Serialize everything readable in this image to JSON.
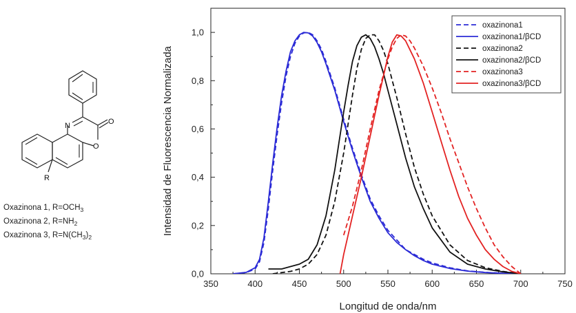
{
  "structure": {
    "atoms": {
      "N": "N",
      "O_ring": "O",
      "O_carbonyl": "O",
      "R": "R"
    },
    "captions": [
      {
        "base": "Oxazinona 1, R=OCH",
        "sub": "3",
        "tail": ""
      },
      {
        "base": "Oxazinona 2, R=NH",
        "sub": "2",
        "tail": ""
      },
      {
        "base": "Oxazinona 3, R=N(CH",
        "sub": "3",
        "tail": ")",
        "sub2": "2"
      }
    ]
  },
  "chart_data": {
    "type": "line",
    "title": "",
    "xlabel": "Longitud de onda/nm",
    "ylabel": "Intensidad de Fluorescencia Normalizada",
    "xlim": [
      350,
      750
    ],
    "ylim": [
      0,
      1.1
    ],
    "xticks": [
      350,
      400,
      450,
      500,
      550,
      600,
      650,
      700,
      750
    ],
    "xtick_labels": [
      "350",
      "400",
      "450",
      "500",
      "550",
      "600",
      "650",
      "700",
      "750"
    ],
    "yticks": [
      0,
      0.2,
      0.4,
      0.6,
      0.8,
      1.0
    ],
    "ytick_labels": [
      "0,0",
      "0,2",
      "0,4",
      "0,6",
      "0,8",
      "1,0"
    ],
    "grid": false,
    "legend_position": "top-right",
    "series": [
      {
        "name": "oxazinona1",
        "color": "#2b2bd6",
        "dash": true,
        "x": [
          375,
          390,
          400,
          405,
          410,
          415,
          420,
          425,
          430,
          435,
          440,
          445,
          450,
          455,
          460,
          465,
          470,
          475,
          480,
          490,
          500,
          510,
          520,
          530,
          540,
          550,
          560,
          570,
          580,
          590,
          600,
          620,
          640,
          660,
          680,
          700
        ],
        "y": [
          0.0,
          0.005,
          0.02,
          0.05,
          0.13,
          0.27,
          0.43,
          0.58,
          0.71,
          0.82,
          0.9,
          0.955,
          0.985,
          0.998,
          1.0,
          0.99,
          0.965,
          0.93,
          0.88,
          0.77,
          0.64,
          0.52,
          0.41,
          0.31,
          0.24,
          0.18,
          0.14,
          0.1,
          0.08,
          0.06,
          0.045,
          0.025,
          0.012,
          0.006,
          0.002,
          0.0
        ]
      },
      {
        "name": "oxazinona1/βCD",
        "color": "#2b2bd6",
        "dash": false,
        "x": [
          375,
          390,
          400,
          405,
          410,
          415,
          420,
          425,
          430,
          435,
          440,
          445,
          450,
          455,
          460,
          465,
          470,
          475,
          480,
          490,
          500,
          510,
          520,
          530,
          540,
          550,
          560,
          570,
          580,
          590,
          600,
          620,
          640,
          660,
          680,
          700
        ],
        "y": [
          0.0,
          0.006,
          0.025,
          0.06,
          0.15,
          0.3,
          0.46,
          0.61,
          0.74,
          0.84,
          0.92,
          0.965,
          0.99,
          1.0,
          0.998,
          0.985,
          0.958,
          0.92,
          0.87,
          0.76,
          0.63,
          0.51,
          0.4,
          0.3,
          0.23,
          0.17,
          0.13,
          0.1,
          0.075,
          0.055,
          0.04,
          0.022,
          0.011,
          0.005,
          0.002,
          0.0
        ]
      },
      {
        "name": "oxazinona2",
        "color": "#111111",
        "dash": true,
        "x": [
          420,
          440,
          450,
          460,
          470,
          480,
          490,
          500,
          505,
          510,
          515,
          520,
          525,
          530,
          535,
          540,
          545,
          550,
          555,
          560,
          570,
          580,
          590,
          600,
          620,
          640,
          660,
          680,
          700
        ],
        "y": [
          0.0,
          0.01,
          0.02,
          0.04,
          0.08,
          0.16,
          0.3,
          0.5,
          0.62,
          0.74,
          0.85,
          0.93,
          0.975,
          0.99,
          0.99,
          0.965,
          0.925,
          0.87,
          0.8,
          0.73,
          0.58,
          0.44,
          0.33,
          0.24,
          0.12,
          0.055,
          0.025,
          0.01,
          0.0
        ]
      },
      {
        "name": "oxazinona2/βCD",
        "color": "#111111",
        "dash": false,
        "x": [
          415,
          430,
          440,
          450,
          460,
          470,
          480,
          490,
          495,
          500,
          505,
          510,
          515,
          520,
          525,
          530,
          535,
          540,
          545,
          550,
          560,
          570,
          580,
          590,
          600,
          620,
          640,
          660,
          680,
          700
        ],
        "y": [
          0.02,
          0.02,
          0.03,
          0.04,
          0.06,
          0.12,
          0.24,
          0.43,
          0.55,
          0.67,
          0.78,
          0.88,
          0.945,
          0.98,
          0.99,
          0.975,
          0.94,
          0.89,
          0.83,
          0.76,
          0.62,
          0.48,
          0.36,
          0.27,
          0.19,
          0.09,
          0.04,
          0.02,
          0.008,
          0.0
        ]
      },
      {
        "name": "oxazinona3",
        "color": "#e32222",
        "dash": true,
        "x": [
          500,
          510,
          520,
          530,
          540,
          550,
          555,
          560,
          565,
          570,
          575,
          580,
          590,
          600,
          610,
          620,
          630,
          640,
          650,
          660,
          670,
          680,
          690,
          700
        ],
        "y": [
          0.16,
          0.28,
          0.43,
          0.6,
          0.76,
          0.89,
          0.94,
          0.975,
          0.99,
          0.985,
          0.965,
          0.935,
          0.86,
          0.77,
          0.67,
          0.56,
          0.46,
          0.36,
          0.27,
          0.19,
          0.12,
          0.07,
          0.03,
          0.0
        ]
      },
      {
        "name": "oxazinona3/βCD",
        "color": "#e32222",
        "dash": false,
        "x": [
          496,
          500,
          505,
          510,
          520,
          530,
          540,
          545,
          550,
          555,
          560,
          565,
          570,
          580,
          590,
          600,
          610,
          620,
          630,
          640,
          650,
          660,
          670,
          680,
          690,
          700
        ],
        "y": [
          0.0,
          0.08,
          0.16,
          0.24,
          0.4,
          0.57,
          0.74,
          0.82,
          0.9,
          0.96,
          0.99,
          0.985,
          0.965,
          0.89,
          0.79,
          0.67,
          0.55,
          0.43,
          0.32,
          0.23,
          0.16,
          0.1,
          0.06,
          0.03,
          0.01,
          0.0
        ]
      }
    ]
  }
}
